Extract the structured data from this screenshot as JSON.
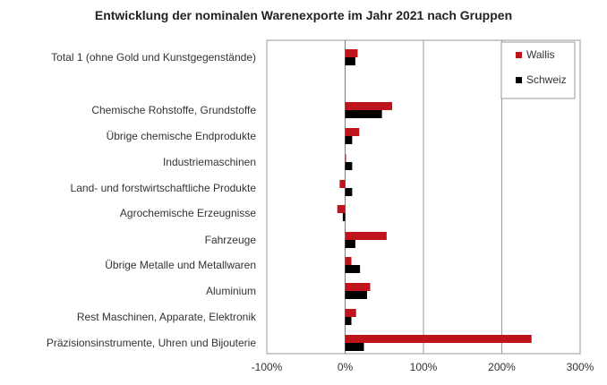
{
  "chart_data": {
    "type": "bar",
    "orientation": "horizontal",
    "title": "Entwicklung der nominalen Warenexporte im Jahr 2021 nach Gruppen",
    "categories": [
      "Total 1 (ohne Gold und Kunstgegenstände)",
      "Chemische Rohstoffe, Grundstoffe",
      "Übrige chemische Endprodukte",
      "Industriemaschinen",
      "Land- und forstwirtschaftliche Produkte",
      "Agrochemische Erzeugnisse",
      "Fahrzeuge",
      "Übrige Metalle und Metallwaren",
      "Aluminium",
      "Rest Maschinen, Apparate, Elektronik",
      "Präzisionsinstrumente, Uhren und Bijouterie"
    ],
    "series": [
      {
        "name": "Wallis",
        "color": "#c0141c",
        "values": [
          16,
          60,
          18,
          1,
          -7,
          -10,
          53,
          8,
          32,
          14,
          238
        ]
      },
      {
        "name": "Schweiz",
        "color": "#000000",
        "values": [
          13,
          47,
          9,
          9,
          9,
          -3,
          13,
          19,
          28,
          8,
          24
        ]
      }
    ],
    "xlim": [
      -100,
      300
    ],
    "xticks": [
      -100,
      0,
      100,
      200,
      300
    ],
    "xtick_labels": [
      "-100%",
      "0%",
      "100%",
      "200%",
      "300%"
    ],
    "gridlines_at": [
      100,
      200
    ],
    "legend_position": "top-right"
  }
}
